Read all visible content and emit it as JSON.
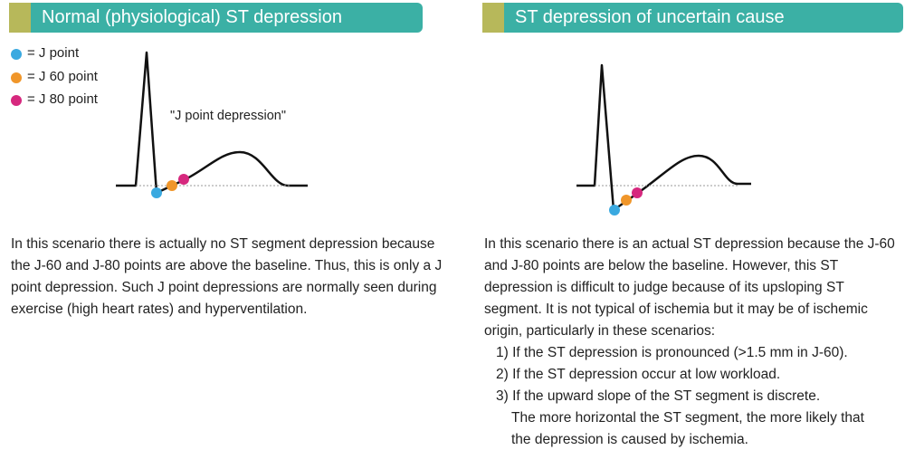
{
  "left_panel": {
    "title": "Normal (physiological) ST depression",
    "legend": [
      "= J point",
      "= J 60 point",
      "= J 80 point"
    ],
    "annotation": "\"J point depression\"",
    "text": "In this scenario there is actually no ST segment depression because the J-60 and J-80 points are above the baseline. Thus, this is only a J point depression. Such J point depressions are normally seen during exercise (high heart rates) and hyperventilation."
  },
  "right_panel": {
    "title": "ST depression of uncertain cause",
    "text": "In this scenario there is an actual ST depression because the J-60 and J-80 points are below the baseline. However, this ST depression is difficult to judge because of its upsloping ST segment. It is not typical of ischemia but it may be of ischemic origin, particularly in these scenarios:",
    "list": [
      "1) If the ST depression is pronounced (>1.5 mm in J-60).",
      "2) If the ST depression occur at low workload.",
      "3) If the upward slope of the ST segment is discrete."
    ],
    "list_note": "The more horizontal the ST segment, the more likely that the depression is caused by ischemia."
  }
}
